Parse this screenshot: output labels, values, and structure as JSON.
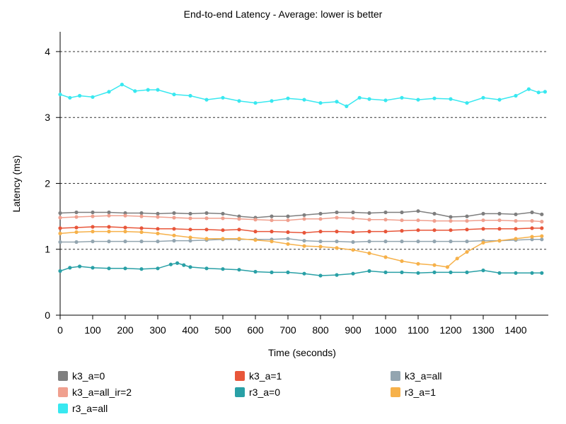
{
  "chart_data": {
    "type": "line",
    "title": "End-to-end Latency - Average: lower is better",
    "xlabel": "Time (seconds)",
    "ylabel": "Latency (ms)",
    "xlim": [
      0,
      1500
    ],
    "ylim": [
      0,
      4.3
    ],
    "x_ticks": [
      0,
      100,
      200,
      300,
      400,
      500,
      600,
      700,
      800,
      900,
      1000,
      1100,
      1200,
      1300,
      1400
    ],
    "y_ticks": [
      0,
      1,
      2,
      3,
      4
    ],
    "grid": "horizontal dashed",
    "legend_position": "bottom",
    "series": [
      {
        "name": "k3_a=0",
        "color": "#7f7f7f",
        "x": [
          0,
          50,
          100,
          150,
          200,
          250,
          300,
          350,
          400,
          450,
          500,
          550,
          600,
          650,
          700,
          750,
          800,
          850,
          900,
          950,
          1000,
          1050,
          1100,
          1150,
          1200,
          1250,
          1300,
          1350,
          1400,
          1450,
          1480
        ],
        "y": [
          1.55,
          1.56,
          1.56,
          1.56,
          1.55,
          1.55,
          1.54,
          1.55,
          1.54,
          1.55,
          1.54,
          1.5,
          1.48,
          1.5,
          1.5,
          1.52,
          1.54,
          1.56,
          1.56,
          1.55,
          1.56,
          1.56,
          1.58,
          1.54,
          1.49,
          1.5,
          1.54,
          1.54,
          1.53,
          1.56,
          1.53
        ]
      },
      {
        "name": "k3_a=1",
        "color": "#e8563a",
        "x": [
          0,
          50,
          100,
          150,
          200,
          250,
          300,
          350,
          400,
          450,
          500,
          550,
          600,
          650,
          700,
          750,
          800,
          850,
          900,
          950,
          1000,
          1050,
          1100,
          1150,
          1200,
          1250,
          1300,
          1350,
          1400,
          1450,
          1480
        ],
        "y": [
          1.32,
          1.33,
          1.34,
          1.34,
          1.33,
          1.32,
          1.31,
          1.31,
          1.3,
          1.3,
          1.29,
          1.3,
          1.27,
          1.27,
          1.26,
          1.25,
          1.27,
          1.27,
          1.26,
          1.27,
          1.27,
          1.28,
          1.29,
          1.29,
          1.29,
          1.3,
          1.31,
          1.31,
          1.31,
          1.32,
          1.32
        ]
      },
      {
        "name": "k3_a=all",
        "color": "#93a5b0",
        "x": [
          0,
          50,
          100,
          150,
          200,
          250,
          300,
          350,
          400,
          450,
          500,
          550,
          600,
          650,
          700,
          750,
          800,
          850,
          900,
          950,
          1000,
          1050,
          1100,
          1150,
          1200,
          1250,
          1300,
          1350,
          1400,
          1450,
          1480
        ],
        "y": [
          1.11,
          1.11,
          1.12,
          1.12,
          1.12,
          1.12,
          1.12,
          1.13,
          1.13,
          1.14,
          1.15,
          1.15,
          1.15,
          1.15,
          1.16,
          1.13,
          1.12,
          1.12,
          1.11,
          1.12,
          1.12,
          1.12,
          1.12,
          1.12,
          1.12,
          1.12,
          1.13,
          1.13,
          1.14,
          1.15,
          1.15
        ]
      },
      {
        "name": "k3_a=all_ir=2",
        "color": "#f0a08f",
        "x": [
          0,
          50,
          100,
          150,
          200,
          250,
          300,
          350,
          400,
          450,
          500,
          550,
          600,
          650,
          700,
          750,
          800,
          850,
          900,
          950,
          1000,
          1050,
          1100,
          1150,
          1200,
          1250,
          1300,
          1350,
          1400,
          1450,
          1480
        ],
        "y": [
          1.48,
          1.49,
          1.5,
          1.51,
          1.51,
          1.5,
          1.49,
          1.48,
          1.47,
          1.47,
          1.47,
          1.46,
          1.45,
          1.44,
          1.44,
          1.46,
          1.46,
          1.48,
          1.47,
          1.45,
          1.45,
          1.44,
          1.44,
          1.43,
          1.43,
          1.43,
          1.44,
          1.44,
          1.43,
          1.43,
          1.42
        ]
      },
      {
        "name": "r3_a=0",
        "color": "#29a0a6",
        "x": [
          0,
          30,
          60,
          100,
          150,
          200,
          250,
          300,
          340,
          360,
          380,
          400,
          450,
          500,
          550,
          600,
          650,
          700,
          750,
          800,
          850,
          900,
          950,
          1000,
          1050,
          1100,
          1150,
          1200,
          1250,
          1300,
          1350,
          1400,
          1450,
          1480
        ],
        "y": [
          0.67,
          0.72,
          0.74,
          0.72,
          0.71,
          0.71,
          0.7,
          0.71,
          0.77,
          0.79,
          0.76,
          0.73,
          0.71,
          0.7,
          0.69,
          0.66,
          0.65,
          0.65,
          0.63,
          0.6,
          0.61,
          0.63,
          0.67,
          0.65,
          0.65,
          0.64,
          0.65,
          0.65,
          0.65,
          0.68,
          0.64,
          0.64,
          0.64,
          0.64
        ]
      },
      {
        "name": "r3_a=1",
        "color": "#f6b14a",
        "x": [
          0,
          50,
          100,
          150,
          200,
          250,
          300,
          350,
          400,
          450,
          500,
          550,
          600,
          650,
          700,
          750,
          800,
          850,
          900,
          950,
          1000,
          1050,
          1100,
          1150,
          1190,
          1220,
          1250,
          1300,
          1350,
          1400,
          1450,
          1480
        ],
        "y": [
          1.24,
          1.26,
          1.27,
          1.27,
          1.27,
          1.26,
          1.24,
          1.21,
          1.18,
          1.16,
          1.16,
          1.16,
          1.14,
          1.12,
          1.08,
          1.05,
          1.04,
          1.02,
          0.99,
          0.94,
          0.88,
          0.82,
          0.78,
          0.76,
          0.73,
          0.86,
          0.96,
          1.1,
          1.13,
          1.16,
          1.19,
          1.2
        ]
      },
      {
        "name": "r3_a=all",
        "color": "#38e8f0",
        "x": [
          0,
          30,
          60,
          100,
          150,
          190,
          230,
          270,
          300,
          350,
          400,
          450,
          500,
          550,
          600,
          650,
          700,
          750,
          800,
          850,
          880,
          920,
          950,
          1000,
          1050,
          1100,
          1150,
          1200,
          1250,
          1300,
          1350,
          1400,
          1440,
          1470,
          1490
        ],
        "y": [
          3.35,
          3.3,
          3.33,
          3.31,
          3.39,
          3.5,
          3.4,
          3.42,
          3.42,
          3.35,
          3.33,
          3.27,
          3.3,
          3.25,
          3.22,
          3.25,
          3.29,
          3.27,
          3.22,
          3.24,
          3.17,
          3.3,
          3.28,
          3.26,
          3.3,
          3.27,
          3.29,
          3.28,
          3.22,
          3.3,
          3.27,
          3.33,
          3.43,
          3.38,
          3.39
        ]
      }
    ]
  }
}
